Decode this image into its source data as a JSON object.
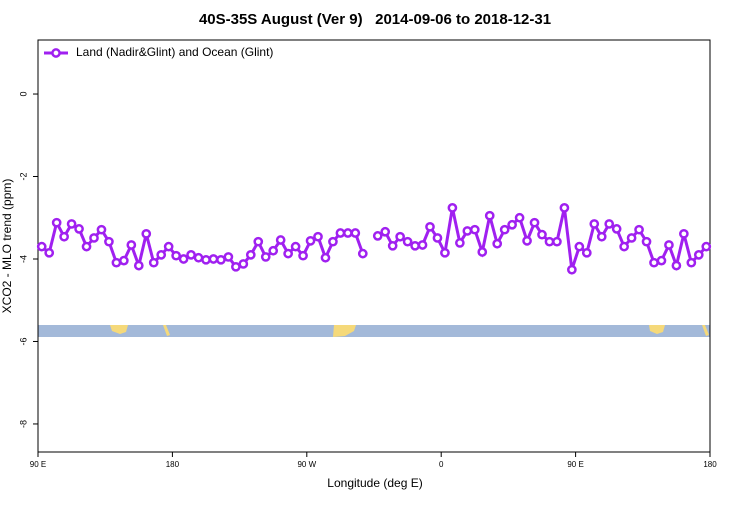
{
  "chart_data": {
    "type": "line",
    "title": "40S-35S August (Ver 9)   2014-09-06 to 2018-12-31",
    "xlabel": "Longitude (deg E)",
    "ylabel": "XCO2 - MLO trend (ppm)",
    "x": [
      92.5,
      97.5,
      102.5,
      107.5,
      112.5,
      117.5,
      122.5,
      127.5,
      132.5,
      137.5,
      142.5,
      147.5,
      152.5,
      157.5,
      162.5,
      167.5,
      172.5,
      177.5,
      182.5,
      187.5,
      192.5,
      197.5,
      202.5,
      207.5,
      212.5,
      217.5,
      222.5,
      227.5,
      232.5,
      237.5,
      242.5,
      247.5,
      252.5,
      257.5,
      262.5,
      267.5,
      272.5,
      277.5,
      282.5,
      287.5,
      292.5,
      297.5,
      302.5,
      307.5,
      312.5,
      317.5,
      322.5,
      327.5,
      332.5,
      337.5,
      342.5,
      347.5,
      352.5,
      357.5,
      362.5,
      367.5,
      372.5,
      377.5,
      382.5,
      387.5,
      392.5,
      397.5,
      402.5,
      407.5,
      412.5,
      417.5,
      422.5,
      427.5,
      432.5,
      437.5,
      442.5,
      447.5,
      452.5,
      457.5,
      462.5,
      467.5,
      472.5,
      477.5,
      482.5,
      487.5,
      492.5,
      497.5,
      502.5,
      507.5,
      512.5,
      517.5,
      522.5,
      527.5,
      532.5,
      537.5
    ],
    "series": [
      {
        "name": "Land (Nadir&Glint) and Ocean (Glint)",
        "color": "#a020f0",
        "values": [
          -3.7,
          -3.85,
          -3.12,
          -3.46,
          -3.15,
          -3.27,
          -3.7,
          -3.49,
          -3.29,
          -3.58,
          -4.09,
          -4.04,
          -3.66,
          -4.16,
          -3.39,
          -4.09,
          -3.9,
          -3.7,
          -3.92,
          -4.0,
          -3.9,
          -3.97,
          -4.02,
          -4.0,
          -4.02,
          -3.95,
          -4.19,
          -4.12,
          -3.9,
          -3.58,
          -3.95,
          -3.8,
          -3.54,
          -3.87,
          -3.7,
          -3.92,
          -3.56,
          -3.46,
          -3.97,
          -3.58,
          -3.37,
          -3.37,
          -3.37,
          -3.87,
          null,
          -3.44,
          -3.34,
          -3.68,
          -3.46,
          -3.58,
          -3.68,
          -3.66,
          -3.22,
          -3.49,
          -3.85,
          -2.76,
          -3.61,
          -3.32,
          -3.29,
          -3.83,
          -2.95,
          -3.63,
          -3.29,
          -3.17,
          -3.0,
          -3.56,
          -3.12,
          -3.41,
          -3.58,
          -3.58,
          -2.76,
          -4.26,
          -3.7,
          -3.85,
          -3.15,
          -3.46,
          -3.15,
          -3.27,
          -3.7,
          -3.49,
          -3.29,
          -3.58,
          -4.09,
          -4.04,
          -3.66,
          -4.16,
          -3.39,
          -4.09,
          -3.9,
          -3.7
        ]
      }
    ],
    "xlim": [
      90,
      540
    ],
    "xticks": [
      {
        "value": 90,
        "label": "90 E"
      },
      180,
      {
        "value": 270,
        "label": "90 W"
      },
      {
        "value": 360,
        "label": "0"
      },
      {
        "value": 450,
        "label": "90 E"
      },
      {
        "value": 540,
        "label": "180"
      }
    ],
    "ylim": [
      -8.68,
      1.31
    ],
    "yticks": [
      0,
      -2,
      -4,
      -6,
      -8
    ],
    "legend": "top-left"
  }
}
